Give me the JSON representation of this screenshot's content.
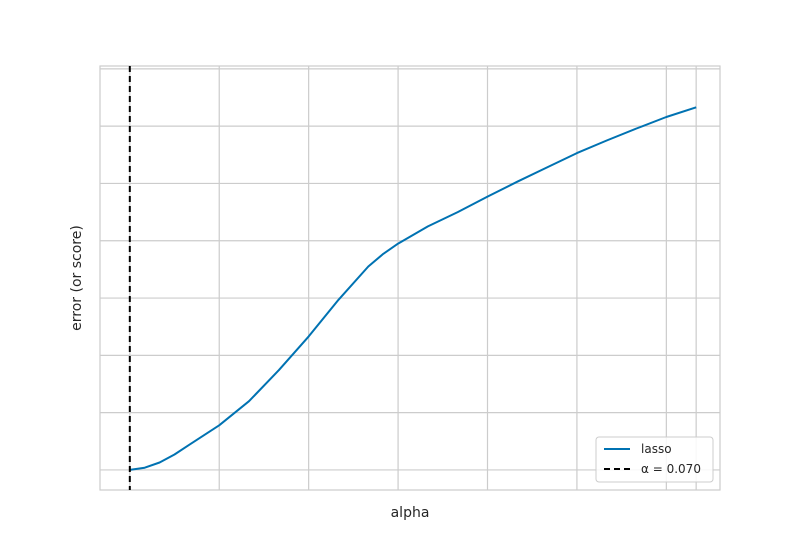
{
  "chart_data": {
    "type": "line",
    "title": "",
    "xlabel": "alpha",
    "ylabel": "error (or score)",
    "xlim": [
      0,
      20.8
    ],
    "ylim": [
      -0.35,
      7.05
    ],
    "grid": true,
    "legend_position": "bottom-right",
    "series": [
      {
        "name": "lasso",
        "color": "#0072b2",
        "x": [
          1,
          1.5,
          2,
          2.5,
          3,
          4,
          5,
          6,
          7,
          8,
          9,
          9.5,
          10,
          11,
          12,
          13,
          14,
          15,
          16,
          17,
          18,
          19,
          20
        ],
        "y": [
          0,
          0.04,
          0.13,
          0.27,
          0.44,
          0.78,
          1.2,
          1.74,
          2.33,
          2.97,
          3.55,
          3.77,
          3.95,
          4.25,
          4.5,
          4.77,
          5.03,
          5.28,
          5.53,
          5.75,
          5.96,
          6.16,
          6.33
        ]
      }
    ],
    "vline": {
      "label": "α = 0.070",
      "x": 1,
      "color": "#000000",
      "style": "dashed"
    },
    "xticks": [
      1,
      4,
      7,
      10,
      13,
      16,
      19,
      20
    ],
    "yticks": [
      0,
      1,
      2,
      3,
      4,
      5,
      6,
      7
    ]
  }
}
